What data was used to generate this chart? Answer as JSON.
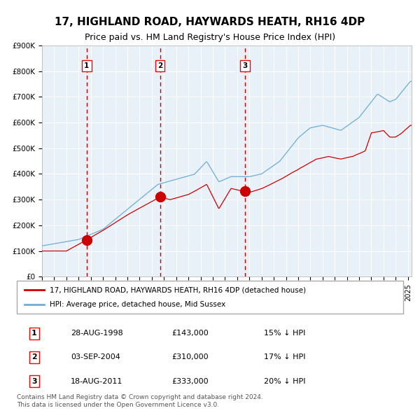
{
  "title": "17, HIGHLAND ROAD, HAYWARDS HEATH, RH16 4DP",
  "subtitle": "Price paid vs. HM Land Registry's House Price Index (HPI)",
  "legend_line1": "17, HIGHLAND ROAD, HAYWARDS HEATH, RH16 4DP (detached house)",
  "legend_line2": "HPI: Average price, detached house, Mid Sussex",
  "table_rows": [
    {
      "num": "1",
      "date": "28-AUG-1998",
      "price": "£143,000",
      "pct": "15% ↓ HPI"
    },
    {
      "num": "2",
      "date": "03-SEP-2004",
      "price": "£310,000",
      "pct": "17% ↓ HPI"
    },
    {
      "num": "3",
      "date": "18-AUG-2011",
      "price": "£333,000",
      "pct": "20% ↓ HPI"
    }
  ],
  "footer": "Contains HM Land Registry data © Crown copyright and database right 2024.\nThis data is licensed under the Open Government Licence v3.0.",
  "sale_dates_num": [
    1998.66,
    2004.67,
    2011.63
  ],
  "sale_prices": [
    143000,
    310000,
    333000
  ],
  "hpi_color": "#6baed6",
  "price_color": "#cc0000",
  "bg_color": "#ddeeff",
  "plot_bg": "#e8f0f8",
  "grid_color": "#ffffff",
  "vline_color": "#cc0000",
  "ylim": [
    0,
    900000
  ],
  "yticks": [
    0,
    100000,
    200000,
    300000,
    400000,
    500000,
    600000,
    700000,
    800000,
    900000
  ],
  "xlim_start": 1995.0,
  "xlim_end": 2025.3
}
